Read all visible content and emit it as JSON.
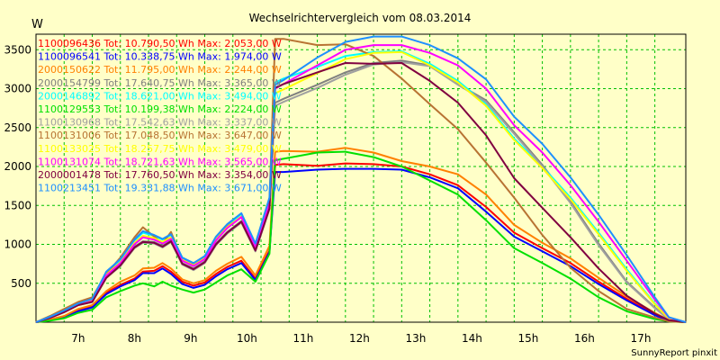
{
  "chart_data": {
    "type": "line",
    "title": "Wechselrichtervergleich vom 08.03.2014",
    "ylabel": "W",
    "xlabel": "",
    "footer": "SunnyReport pinxit",
    "ylim": [
      0,
      3700
    ],
    "xlim": [
      6.5,
      18.05
    ],
    "yticks": [
      500,
      1000,
      1500,
      2000,
      2500,
      3000,
      3500
    ],
    "xticks": [
      {
        "v": 7,
        "label": "7h"
      },
      {
        "v": 8,
        "label": "8h"
      },
      {
        "v": 9,
        "label": "9h"
      },
      {
        "v": 10,
        "label": "10h"
      },
      {
        "v": 11,
        "label": "11h"
      },
      {
        "v": 12,
        "label": "12h"
      },
      {
        "v": 13,
        "label": "13h"
      },
      {
        "v": 14,
        "label": "14h"
      },
      {
        "v": 15,
        "label": "15h"
      },
      {
        "v": 16,
        "label": "16h"
      },
      {
        "v": 17,
        "label": "17h"
      }
    ],
    "x": [
      6.5,
      6.75,
      7.0,
      7.25,
      7.5,
      7.75,
      8.0,
      8.25,
      8.4,
      8.6,
      8.75,
      8.9,
      9.1,
      9.3,
      9.5,
      9.7,
      9.9,
      10.15,
      10.4,
      10.65,
      10.75,
      10.9,
      11.5,
      12.0,
      12.5,
      13.0,
      13.5,
      14.0,
      14.5,
      15.0,
      15.5,
      16.0,
      16.5,
      17.0,
      17.5,
      17.75,
      18.05
    ],
    "series": [
      {
        "name": "1100096436 Tot: 10.790,50 Wh Max: 2.053,00 W",
        "color": "#ff0000",
        "values": [
          0,
          30,
          70,
          150,
          200,
          380,
          480,
          560,
          650,
          660,
          720,
          650,
          520,
          470,
          510,
          620,
          710,
          790,
          560,
          920,
          2020,
          2030,
          2010,
          2040,
          2030,
          2000,
          1900,
          1760,
          1480,
          1150,
          950,
          760,
          520,
          300,
          100,
          20,
          0
        ]
      },
      {
        "name": "1100096541 Tot: 10.338,75 Wh Max: 1.974,00 W",
        "color": "#0000ff",
        "values": [
          0,
          25,
          60,
          140,
          190,
          360,
          460,
          540,
          630,
          630,
          690,
          620,
          490,
          440,
          480,
          590,
          680,
          760,
          540,
          900,
          1930,
          1930,
          1960,
          1970,
          1970,
          1960,
          1860,
          1720,
          1420,
          1100,
          910,
          720,
          490,
          280,
          90,
          15,
          0
        ]
      },
      {
        "name": "2000150622 Tot: 11.795,00 Wh Max: 2.244,00 W",
        "color": "#ff8000",
        "values": [
          0,
          35,
          80,
          170,
          220,
          400,
          520,
          600,
          690,
          700,
          760,
          690,
          550,
          500,
          540,
          660,
          750,
          840,
          600,
          980,
          2190,
          2200,
          2190,
          2240,
          2180,
          2070,
          2000,
          1900,
          1640,
          1250,
          1020,
          820,
          570,
          330,
          120,
          25,
          0
        ]
      },
      {
        "name": "2000154799 Tot: 17.640,75 Wh Max: 3.365,00 W",
        "color": "#808080",
        "values": [
          0,
          60,
          140,
          230,
          270,
          590,
          740,
          970,
          1040,
          1030,
          980,
          1050,
          760,
          690,
          780,
          1010,
          1160,
          1300,
          930,
          1480,
          2820,
          2870,
          3050,
          3210,
          3330,
          3360,
          3300,
          3060,
          2850,
          2440,
          2020,
          1550,
          1010,
          520,
          190,
          40,
          0
        ]
      },
      {
        "name": "2000146892 Tot: 18.621,00 Wh Max: 3.494,00 W",
        "color": "#00ffff",
        "values": [
          0,
          65,
          150,
          240,
          290,
          630,
          790,
          1050,
          1150,
          1110,
          1060,
          1120,
          820,
          750,
          840,
          1090,
          1250,
          1390,
          1000,
          1580,
          3080,
          3130,
          3280,
          3420,
          3470,
          3480,
          3320,
          3100,
          2800,
          2360,
          2000,
          1600,
          1150,
          680,
          240,
          50,
          0
        ]
      },
      {
        "name": "1100129553 Tot: 10.199,38 Wh Max: 2.224,00 W",
        "color": "#00e000",
        "values": [
          0,
          20,
          50,
          120,
          160,
          320,
          400,
          470,
          500,
          460,
          520,
          470,
          420,
          380,
          420,
          510,
          600,
          680,
          520,
          880,
          2080,
          2100,
          2180,
          2190,
          2120,
          2000,
          1820,
          1640,
          1310,
          950,
          760,
          560,
          320,
          140,
          40,
          10,
          0
        ]
      },
      {
        "name": "1100130968 Tot: 17.542,63 Wh Max: 3.337,00 W",
        "color": "#a0a0a0",
        "values": [
          0,
          55,
          130,
          220,
          260,
          570,
          720,
          950,
          1020,
          1010,
          960,
          1030,
          740,
          670,
          760,
          990,
          1140,
          1280,
          910,
          1450,
          2780,
          2830,
          3010,
          3180,
          3310,
          3340,
          3290,
          3050,
          2830,
          2420,
          2000,
          1530,
          990,
          510,
          180,
          35,
          0
        ]
      },
      {
        "name": "1100131006 Tot: 17.048,50 Wh Max: 3.647,00 W",
        "color": "#b87333",
        "values": [
          0,
          80,
          170,
          260,
          320,
          620,
          830,
          1090,
          1220,
          1100,
          1010,
          1160,
          800,
          740,
          830,
          1060,
          1230,
          1350,
          960,
          1560,
          3640,
          3640,
          3560,
          3570,
          3420,
          3130,
          2800,
          2480,
          2050,
          1600,
          1120,
          700,
          400,
          170,
          60,
          10,
          0
        ]
      },
      {
        "name": "1100133025 Tot: 18.257,75 Wh Max: 3.479,00 W",
        "color": "#ffff00",
        "values": [
          0,
          60,
          145,
          235,
          285,
          610,
          770,
          1020,
          1110,
          1080,
          1030,
          1090,
          800,
          730,
          820,
          1060,
          1220,
          1360,
          980,
          1550,
          2940,
          2990,
          3200,
          3380,
          3460,
          3470,
          3300,
          3080,
          2780,
          2340,
          1980,
          1580,
          1130,
          660,
          230,
          45,
          0
        ]
      },
      {
        "name": "1100131074 Tot: 18.721,63 Wh Max: 3.565,00 W",
        "color": "#ff00ff",
        "values": [
          0,
          55,
          130,
          220,
          270,
          600,
          760,
          1000,
          1090,
          1060,
          1010,
          1070,
          790,
          720,
          810,
          1050,
          1210,
          1350,
          970,
          1540,
          3000,
          3060,
          3300,
          3500,
          3560,
          3560,
          3460,
          3300,
          3000,
          2530,
          2180,
          1760,
          1290,
          790,
          290,
          60,
          0
        ]
      },
      {
        "name": "2000001478 Tot: 17.760,50 Wh Max: 3.354,00 W",
        "color": "#800040",
        "values": [
          0,
          55,
          130,
          220,
          260,
          570,
          730,
          960,
          1030,
          1020,
          970,
          1040,
          750,
          680,
          770,
          1000,
          1150,
          1290,
          920,
          1460,
          3010,
          3060,
          3210,
          3330,
          3320,
          3330,
          3100,
          2820,
          2400,
          1850,
          1470,
          1090,
          690,
          340,
          110,
          25,
          0
        ]
      },
      {
        "name": "1100213451 Tot: 19.331,88 Wh Max: 3.671,00 W",
        "color": "#1e90ff",
        "values": [
          0,
          70,
          150,
          240,
          300,
          650,
          810,
          1060,
          1170,
          1120,
          1070,
          1130,
          830,
          760,
          850,
          1100,
          1260,
          1400,
          1010,
          1600,
          3050,
          3110,
          3400,
          3600,
          3670,
          3670,
          3560,
          3390,
          3120,
          2640,
          2290,
          1860,
          1380,
          860,
          320,
          65,
          0
        ]
      }
    ]
  }
}
